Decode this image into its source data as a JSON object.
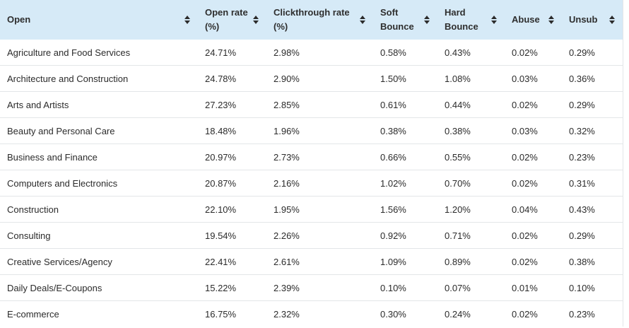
{
  "table": {
    "headers": [
      {
        "line1": "Open",
        "line2": ""
      },
      {
        "line1": "Open rate",
        "line2": "(%)"
      },
      {
        "line1": "Clickthrough rate",
        "line2": "(%)"
      },
      {
        "line1": "Soft",
        "line2": "Bounce"
      },
      {
        "line1": "Hard",
        "line2": "Bounce"
      },
      {
        "line1": "Abuse",
        "line2": ""
      },
      {
        "line1": "Unsub",
        "line2": ""
      }
    ],
    "rows": [
      [
        "Agriculture and Food Services",
        "24.71%",
        "2.98%",
        "0.58%",
        "0.43%",
        "0.02%",
        "0.29%"
      ],
      [
        "Architecture and Construction",
        "24.78%",
        "2.90%",
        "1.50%",
        "1.08%",
        "0.03%",
        "0.36%"
      ],
      [
        "Arts and Artists",
        "27.23%",
        "2.85%",
        "0.61%",
        "0.44%",
        "0.02%",
        "0.29%"
      ],
      [
        "Beauty and Personal Care",
        "18.48%",
        "1.96%",
        "0.38%",
        "0.38%",
        "0.03%",
        "0.32%"
      ],
      [
        "Business and Finance",
        "20.97%",
        "2.73%",
        "0.66%",
        "0.55%",
        "0.02%",
        "0.23%"
      ],
      [
        "Computers and Electronics",
        "20.87%",
        "2.16%",
        "1.02%",
        "0.70%",
        "0.02%",
        "0.31%"
      ],
      [
        "Construction",
        "22.10%",
        "1.95%",
        "1.56%",
        "1.20%",
        "0.04%",
        "0.43%"
      ],
      [
        "Consulting",
        "19.54%",
        "2.26%",
        "0.92%",
        "0.71%",
        "0.02%",
        "0.29%"
      ],
      [
        "Creative Services/Agency",
        "22.41%",
        "2.61%",
        "1.09%",
        "0.89%",
        "0.02%",
        "0.38%"
      ],
      [
        "Daily Deals/E-Coupons",
        "15.22%",
        "2.39%",
        "0.10%",
        "0.07%",
        "0.01%",
        "0.10%"
      ],
      [
        "E-commerce",
        "16.75%",
        "2.32%",
        "0.30%",
        "0.24%",
        "0.02%",
        "0.23%"
      ]
    ]
  },
  "icons": {
    "sort": "sort-updown-icon"
  },
  "colors": {
    "header_bg": "#d6eaf7",
    "row_border": "#e3e6e8",
    "text": "#2b2b2b"
  }
}
